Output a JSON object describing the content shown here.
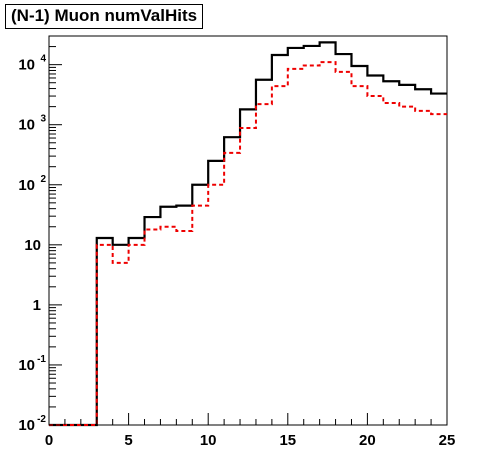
{
  "title": "(N-1) Muon numValHits",
  "chart_data": {
    "type": "line",
    "title": "(N-1) Muon numValHits",
    "xlabel": "",
    "ylabel": "",
    "xlim": [
      0,
      25
    ],
    "ylim": [
      0.01,
      30000
    ],
    "y_scale": "log",
    "grid": false,
    "legend": "none",
    "bin_edges": [
      0,
      1,
      2,
      3,
      4,
      5,
      6,
      7,
      8,
      9,
      10,
      11,
      12,
      13,
      14,
      15,
      16,
      17,
      18,
      19,
      20,
      21,
      22,
      23,
      24,
      25
    ],
    "x_ticks": [
      {
        "value": 0,
        "label": "0"
      },
      {
        "value": 5,
        "label": "5"
      },
      {
        "value": 10,
        "label": "10"
      },
      {
        "value": 15,
        "label": "15"
      },
      {
        "value": 20,
        "label": "20"
      },
      {
        "value": 25,
        "label": "25"
      }
    ],
    "y_ticks": [
      {
        "value": 0.01,
        "base": "10",
        "exp": "-2"
      },
      {
        "value": 0.1,
        "base": "10",
        "exp": "-1"
      },
      {
        "value": 1,
        "base": "1",
        "exp": ""
      },
      {
        "value": 10,
        "base": "10",
        "exp": ""
      },
      {
        "value": 100,
        "base": "10",
        "exp": "2"
      },
      {
        "value": 1000,
        "base": "10",
        "exp": "3"
      },
      {
        "value": 10000,
        "base": "10",
        "exp": "4"
      }
    ],
    "series": [
      {
        "color": "#000000",
        "style": "solid",
        "values": [
          0.01,
          0.01,
          0.01,
          13,
          10,
          13,
          29,
          43,
          45,
          100,
          250,
          620,
          1800,
          5600,
          14500,
          19000,
          20500,
          23500,
          15000,
          9500,
          6600,
          5300,
          4600,
          3900,
          3300
        ]
      },
      {
        "color": "#ee0000",
        "style": "dashed",
        "values": [
          0.01,
          0.01,
          0.01,
          10,
          5,
          10,
          18,
          20,
          17,
          45,
          100,
          340,
          880,
          2200,
          4400,
          8500,
          9700,
          11000,
          7600,
          4400,
          3000,
          2300,
          2000,
          1700,
          1500
        ]
      }
    ]
  }
}
